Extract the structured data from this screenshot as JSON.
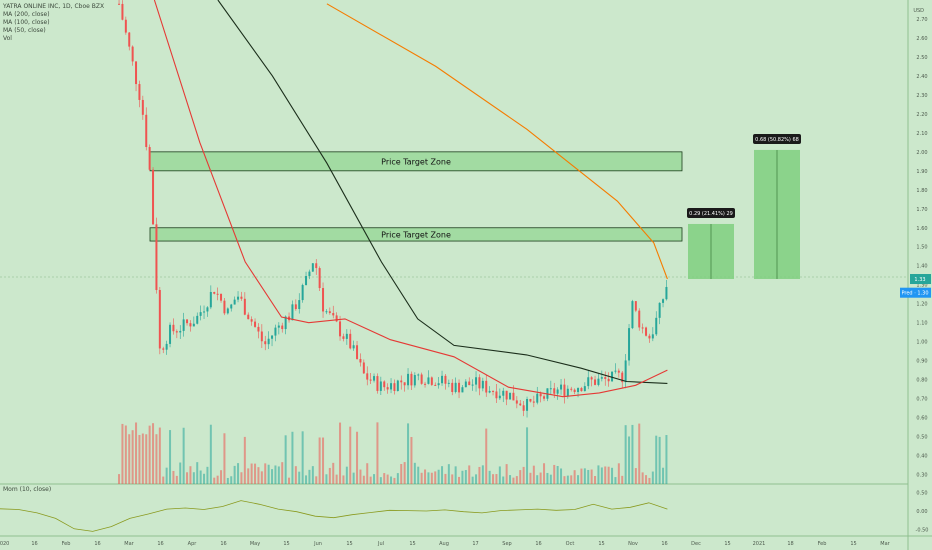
{
  "header": {
    "symbol": "YATRA ONLINE INC, 1D, Cboe BZX",
    "indicators": [
      "MA (200, close)",
      "MA (100, close)",
      "MA (50, close)",
      "Vol"
    ],
    "currency": "USD"
  },
  "momentum_label": "Mom (10, close)",
  "zones": [
    {
      "label": "Price Target Zone",
      "top": 2.0,
      "bottom": 1.9
    },
    {
      "label": "Price Target Zone",
      "top": 1.6,
      "bottom": 1.53
    }
  ],
  "measures": [
    {
      "label": "0.29 (21.41%) 29",
      "from": 1.33,
      "to": 1.62
    },
    {
      "label": "0.68 (50.82%) 68",
      "from": 1.33,
      "to": 2.01
    }
  ],
  "price_badges": {
    "last": "1.33",
    "pred": "Pred · 1.30"
  },
  "colors": {
    "background": "#cce8cc",
    "up": "#26a69a",
    "down": "#ef5350",
    "zone_fill": "#7fcf7f",
    "ma200": "#f57c00",
    "ma100": "#1b2e1b",
    "ma50": "#e53935",
    "momentum": "#8a9a1f",
    "badge": "#2196f3"
  },
  "chart_data": [
    {
      "type": "candlestick",
      "title": "YATRA ONLINE INC, 1D, Cboe BZX",
      "y_ticks": [
        "2.70",
        "2.60",
        "2.50",
        "2.40",
        "2.30",
        "2.20",
        "2.10",
        "2.00",
        "1.90",
        "1.80",
        "1.70",
        "1.60",
        "1.50",
        "1.40",
        "1.30",
        "1.20",
        "1.10",
        "1.00",
        "0.90",
        "0.80",
        "0.70",
        "0.60",
        "0.50",
        "0.40",
        "0.30"
      ],
      "x_ticks": [
        "2020",
        "16",
        "Feb",
        "16",
        "Mar",
        "16",
        "Apr",
        "16",
        "May",
        "15",
        "Jun",
        "15",
        "Jul",
        "15",
        "Aug",
        "17",
        "Sep",
        "16",
        "Oct",
        "15",
        "Nov",
        "16",
        "Dec",
        "15",
        "2021",
        "18",
        "Feb",
        "15",
        "Mar"
      ],
      "ylim": [
        0.25,
        2.8
      ],
      "series": [
        {
          "name": "MA (200, close)",
          "points": [
            [
              0.36,
              2.78
            ],
            [
              0.48,
              2.45
            ],
            [
              0.58,
              2.12
            ],
            [
              0.68,
              1.74
            ],
            [
              0.72,
              1.52
            ],
            [
              0.735,
              1.33
            ]
          ]
        },
        {
          "name": "MA (100, close)",
          "points": [
            [
              0.24,
              2.8
            ],
            [
              0.3,
              2.4
            ],
            [
              0.36,
              1.94
            ],
            [
              0.42,
              1.42
            ],
            [
              0.46,
              1.12
            ],
            [
              0.5,
              0.98
            ],
            [
              0.58,
              0.93
            ],
            [
              0.64,
              0.86
            ],
            [
              0.69,
              0.79
            ],
            [
              0.735,
              0.78
            ]
          ]
        },
        {
          "name": "MA (50, close)",
          "points": [
            [
              0.17,
              2.8
            ],
            [
              0.22,
              2.05
            ],
            [
              0.27,
              1.42
            ],
            [
              0.31,
              1.13
            ],
            [
              0.34,
              1.1
            ],
            [
              0.38,
              1.12
            ],
            [
              0.43,
              1.01
            ],
            [
              0.5,
              0.92
            ],
            [
              0.56,
              0.76
            ],
            [
              0.62,
              0.71
            ],
            [
              0.66,
              0.73
            ],
            [
              0.7,
              0.77
            ],
            [
              0.735,
              0.85
            ]
          ]
        }
      ],
      "current_price": 1.33,
      "last_close_label": "1.33"
    },
    {
      "type": "line",
      "title": "Mom (10, close)",
      "y_ticks": [
        "0.50",
        "0.00",
        "-0.50"
      ],
      "ylim": [
        -0.62,
        0.62
      ],
      "values": [
        0.06,
        0.04,
        -0.05,
        -0.2,
        -0.48,
        -0.55,
        -0.42,
        -0.2,
        -0.08,
        0.05,
        0.08,
        0.04,
        0.12,
        0.28,
        0.18,
        0.05,
        -0.02,
        -0.14,
        -0.18,
        -0.1,
        -0.04,
        0.02,
        0.01,
        0.0,
        0.03,
        -0.02,
        -0.05,
        0.01,
        0.03,
        0.05,
        0.02,
        0.04,
        0.18,
        0.05,
        0.1,
        0.22,
        0.05
      ]
    }
  ]
}
